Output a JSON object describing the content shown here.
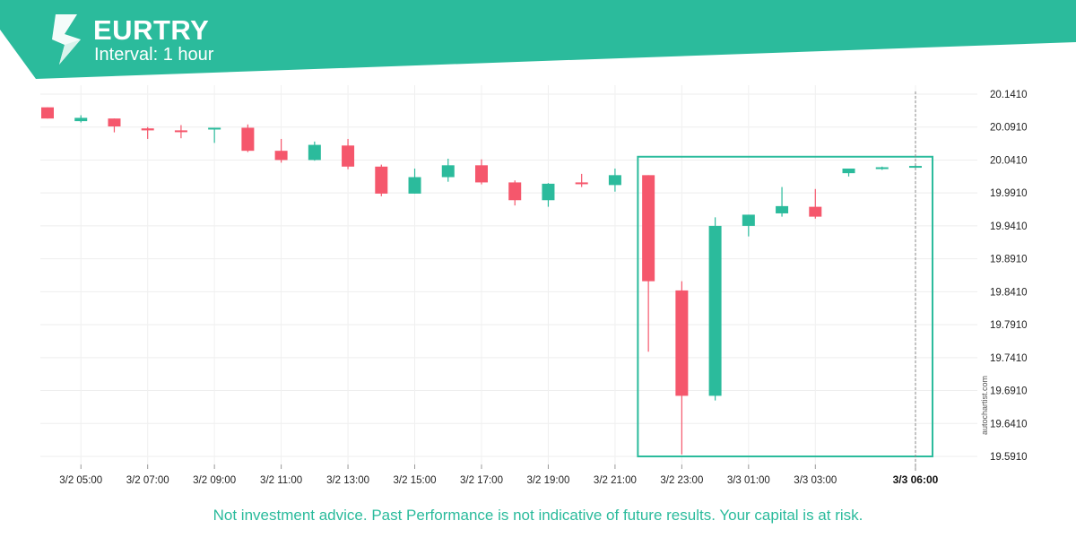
{
  "header": {
    "symbol": "EURTRY",
    "interval": "Interval: 1 hour",
    "brand_color": "#2bbb9c"
  },
  "footer": {
    "disclaimer": "Not investment advice. Past Performance is not indicative of future results. Your capital is at risk.",
    "watermark": "autochartist.com"
  },
  "chart_data": {
    "type": "candlestick",
    "colors": {
      "up": "#2bbb9c",
      "down": "#f5576c",
      "pattern_box": "#2bbb9c"
    },
    "y_ticks": [
      "20.1410",
      "20.0910",
      "20.0410",
      "19.9910",
      "19.9410",
      "19.8910",
      "19.8410",
      "19.7910",
      "19.7410",
      "19.6910",
      "19.6410",
      "19.5910"
    ],
    "ylim": [
      19.581,
      20.151
    ],
    "x_ticks": [
      "3/2 05:00",
      "3/2 07:00",
      "3/2 09:00",
      "3/2 11:00",
      "3/2 13:00",
      "3/2 15:00",
      "3/2 17:00",
      "3/2 19:00",
      "3/2 21:00",
      "3/2 23:00",
      "3/3 01:00",
      "3/3 03:00",
      "3/3 06:00"
    ],
    "highlighted_x_tick": "3/3 06:00",
    "grid": true,
    "candles": [
      {
        "t": "3/2 04:00",
        "o": 20.121,
        "h": 20.121,
        "l": 20.104,
        "c": 20.104
      },
      {
        "t": "3/2 05:00",
        "o": 20.1,
        "h": 20.109,
        "l": 20.098,
        "c": 20.105
      },
      {
        "t": "3/2 06:00",
        "o": 20.104,
        "h": 20.104,
        "l": 20.083,
        "c": 20.092
      },
      {
        "t": "3/2 07:00",
        "o": 20.089,
        "h": 20.091,
        "l": 20.073,
        "c": 20.086
      },
      {
        "t": "3/2 08:00",
        "o": 20.086,
        "h": 20.094,
        "l": 20.074,
        "c": 20.085
      },
      {
        "t": "3/2 09:00",
        "o": 20.089,
        "h": 20.09,
        "l": 20.067,
        "c": 20.09
      },
      {
        "t": "3/2 10:00",
        "o": 20.09,
        "h": 20.095,
        "l": 20.053,
        "c": 20.055
      },
      {
        "t": "3/2 11:00",
        "o": 20.055,
        "h": 20.073,
        "l": 20.037,
        "c": 20.041
      },
      {
        "t": "3/2 12:00",
        "o": 20.041,
        "h": 20.069,
        "l": 20.04,
        "c": 20.064
      },
      {
        "t": "3/2 13:00",
        "o": 20.063,
        "h": 20.073,
        "l": 20.027,
        "c": 20.031
      },
      {
        "t": "3/2 14:00",
        "o": 20.031,
        "h": 20.034,
        "l": 19.986,
        "c": 19.99
      },
      {
        "t": "3/2 15:00",
        "o": 19.99,
        "h": 20.028,
        "l": 19.99,
        "c": 20.015
      },
      {
        "t": "3/2 16:00",
        "o": 20.015,
        "h": 20.043,
        "l": 20.008,
        "c": 20.033
      },
      {
        "t": "3/2 17:00",
        "o": 20.033,
        "h": 20.042,
        "l": 20.004,
        "c": 20.007
      },
      {
        "t": "3/2 18:00",
        "o": 20.007,
        "h": 20.01,
        "l": 19.972,
        "c": 19.98
      },
      {
        "t": "3/2 19:00",
        "o": 19.98,
        "h": 20.006,
        "l": 19.97,
        "c": 20.005
      },
      {
        "t": "3/2 20:00",
        "o": 20.007,
        "h": 20.02,
        "l": 20.0,
        "c": 20.005
      },
      {
        "t": "3/2 21:00",
        "o": 20.003,
        "h": 20.028,
        "l": 19.993,
        "c": 20.018
      },
      {
        "t": "3/2 22:00",
        "o": 20.018,
        "h": 20.018,
        "l": 19.75,
        "c": 19.857
      },
      {
        "t": "3/2 23:00",
        "o": 19.843,
        "h": 19.857,
        "l": 19.594,
        "c": 19.683
      },
      {
        "t": "3/3 00:00",
        "o": 19.683,
        "h": 19.954,
        "l": 19.676,
        "c": 19.941
      },
      {
        "t": "3/3 01:00",
        "o": 19.941,
        "h": 19.958,
        "l": 19.925,
        "c": 19.958
      },
      {
        "t": "3/3 02:00",
        "o": 19.96,
        "h": 20.0,
        "l": 19.955,
        "c": 19.971
      },
      {
        "t": "3/3 03:00",
        "o": 19.97,
        "h": 19.997,
        "l": 19.952,
        "c": 19.955
      },
      {
        "t": "3/3 04:00",
        "o": 20.021,
        "h": 20.028,
        "l": 20.016,
        "c": 20.028
      },
      {
        "t": "3/3 05:00",
        "o": 20.028,
        "h": 20.031,
        "l": 20.026,
        "c": 20.03
      },
      {
        "t": "3/3 06:00",
        "o": 20.032,
        "h": 20.034,
        "l": 20.031,
        "c": 20.032
      }
    ],
    "pattern_box": {
      "x_start": "3/2 23:00",
      "x_end": "3/3 06:00",
      "y_low": 19.591,
      "y_high": 20.046
    }
  }
}
